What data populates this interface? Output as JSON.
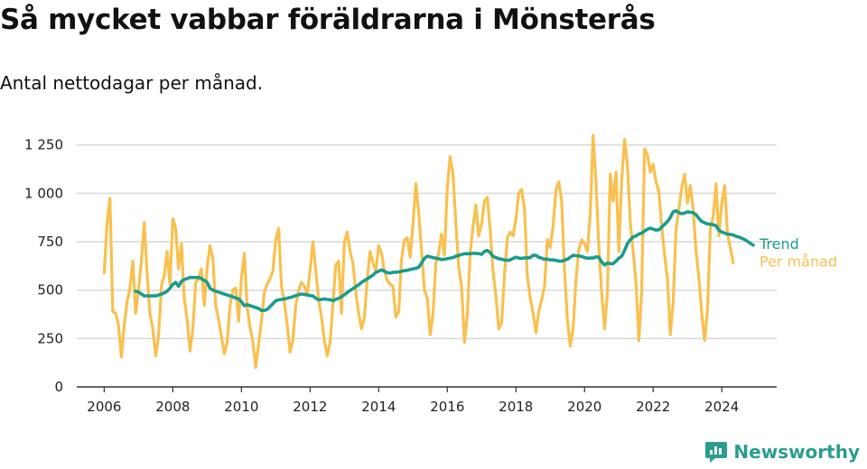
{
  "header": {
    "title": "Så mycket vabbar föräldrarna i Mönsterås",
    "subtitle": "Antal nettodagar per månad."
  },
  "brand": {
    "name": "Newsworthy",
    "icon": "newsworthy-logo-icon",
    "color": "#2a9d8f"
  },
  "chart_data": {
    "type": "line",
    "title": "Så mycket vabbar föräldrarna i Mönsterås",
    "subtitle": "Antal nettodagar per månad.",
    "xlabel": "",
    "ylabel": "",
    "xlim": [
      2005.2,
      2025.6
    ],
    "ylim": [
      0,
      1300
    ],
    "xticks": [
      2006,
      2008,
      2010,
      2012,
      2014,
      2016,
      2018,
      2020,
      2022,
      2024
    ],
    "yticks": [
      0,
      250,
      500,
      750,
      1000,
      1250
    ],
    "ytick_labels": [
      "0",
      "250",
      "500",
      "750",
      "1 000",
      "1 250"
    ],
    "grid": "horizontal",
    "legend": "right end of lines",
    "series": [
      {
        "name": "Per månad",
        "color": "#f9c04f",
        "x_start": 2006.0,
        "x_step": 0.08333,
        "values": [
          590,
          850,
          975,
          390,
          380,
          320,
          155,
          320,
          440,
          510,
          650,
          380,
          500,
          650,
          850,
          590,
          380,
          300,
          160,
          260,
          520,
          580,
          700,
          530,
          870,
          820,
          610,
          740,
          460,
          350,
          185,
          300,
          540,
          560,
          610,
          420,
          620,
          730,
          660,
          420,
          350,
          260,
          170,
          230,
          420,
          500,
          510,
          340,
          560,
          690,
          410,
          310,
          230,
          100,
          220,
          340,
          490,
          530,
          560,
          600,
          760,
          820,
          520,
          440,
          320,
          180,
          240,
          420,
          500,
          540,
          520,
          480,
          600,
          750,
          600,
          450,
          360,
          240,
          160,
          230,
          430,
          630,
          650,
          380,
          750,
          800,
          700,
          640,
          490,
          380,
          300,
          360,
          560,
          700,
          640,
          600,
          730,
          690,
          600,
          550,
          530,
          520,
          360,
          390,
          660,
          760,
          770,
          670,
          840,
          1050,
          900,
          700,
          500,
          460,
          270,
          380,
          640,
          690,
          790,
          680,
          1030,
          1190,
          1100,
          840,
          620,
          520,
          230,
          370,
          690,
          830,
          940,
          780,
          840,
          960,
          980,
          810,
          600,
          470,
          300,
          330,
          580,
          770,
          800,
          780,
          870,
          1000,
          1020,
          920,
          570,
          460,
          380,
          280,
          390,
          450,
          520,
          760,
          720,
          830,
          1020,
          1060,
          960,
          600,
          350,
          210,
          300,
          550,
          710,
          760,
          740,
          700,
          900,
          1300,
          1060,
          720,
          490,
          300,
          490,
          1100,
          960,
          1110,
          700,
          1070,
          1280,
          1150,
          850,
          700,
          540,
          240,
          490,
          1230,
          1200,
          1110,
          1150,
          1060,
          1010,
          830,
          680,
          560,
          270,
          440,
          810,
          920,
          1030,
          1100,
          950,
          1040,
          920,
          700,
          560,
          380,
          240,
          400,
          820,
          880,
          1050,
          780,
          950,
          1040,
          790,
          720,
          640
        ]
      },
      {
        "name": "Trend",
        "color": "#1a9c8c",
        "x_start": 2006.917,
        "x_step": 0.08333,
        "values": [
          495,
          490,
          480,
          470,
          470,
          470,
          470,
          470,
          475,
          480,
          485,
          495,
          510,
          530,
          540,
          520,
          545,
          555,
          560,
          565,
          565,
          565,
          565,
          560,
          550,
          540,
          510,
          500,
          495,
          490,
          485,
          480,
          475,
          470,
          465,
          460,
          455,
          440,
          420,
          425,
          420,
          415,
          410,
          405,
          395,
          395,
          400,
          415,
          430,
          445,
          450,
          452,
          455,
          458,
          462,
          466,
          472,
          476,
          480,
          478,
          475,
          472,
          470,
          458,
          450,
          452,
          455,
          452,
          450,
          446,
          452,
          458,
          466,
          476,
          488,
          498,
          508,
          518,
          528,
          540,
          550,
          558,
          568,
          578,
          592,
          598,
          605,
          598,
          590,
          588,
          592,
          592,
          594,
          598,
          600,
          603,
          606,
          610,
          613,
          618,
          640,
          665,
          675,
          672,
          668,
          665,
          662,
          658,
          660,
          662,
          666,
          668,
          675,
          680,
          684,
          688,
          688,
          688,
          690,
          690,
          688,
          685,
          700,
          705,
          694,
          674,
          668,
          662,
          660,
          656,
          654,
          656,
          664,
          670,
          666,
          664,
          667,
          667,
          668,
          680,
          680,
          670,
          665,
          660,
          660,
          656,
          656,
          654,
          650,
          650,
          655,
          660,
          670,
          680,
          678,
          676,
          674,
          668,
          665,
          666,
          666,
          672,
          670,
          646,
          630,
          640,
          637,
          637,
          650,
          665,
          675,
          705,
          740,
          760,
          775,
          780,
          790,
          795,
          805,
          815,
          820,
          815,
          810,
          812,
          825,
          840,
          855,
          875,
          905,
          910,
          900,
          895,
          898,
          905,
          902,
          900,
          890,
          870,
          855,
          848,
          842,
          840,
          838,
          832,
          810,
          800,
          795,
          790,
          788,
          785,
          778,
          775,
          768,
          762,
          752,
          742,
          732
        ]
      }
    ]
  }
}
